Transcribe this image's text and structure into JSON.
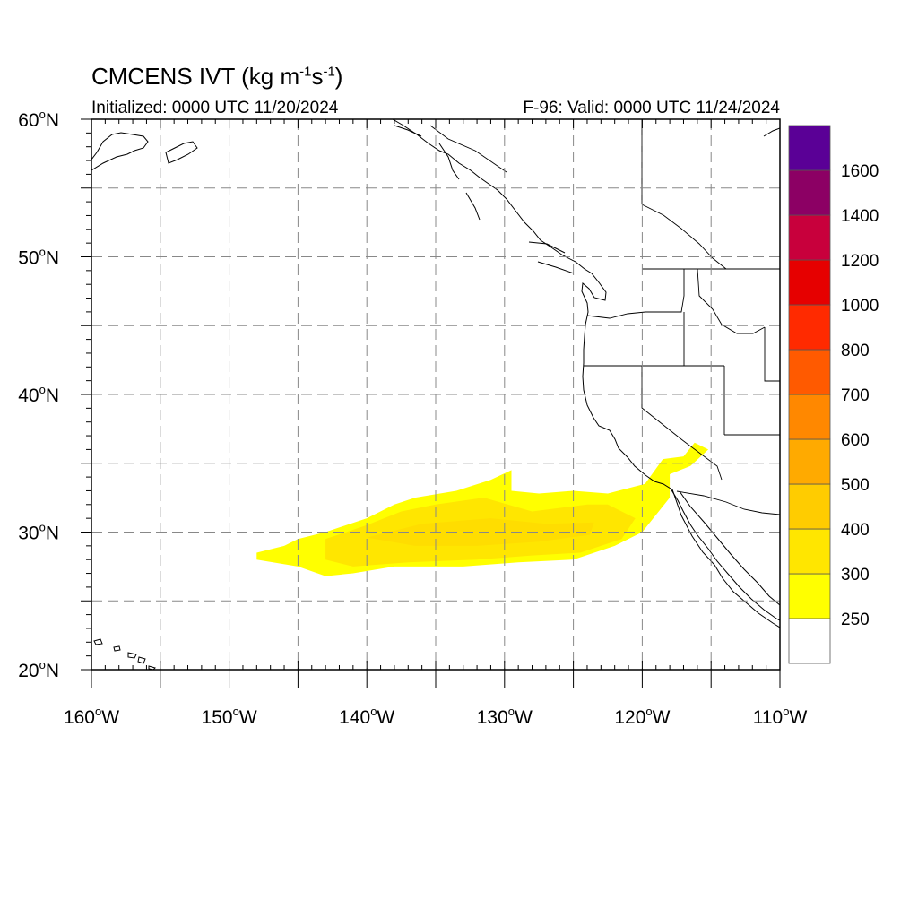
{
  "header": {
    "title_main": "CMCENS IVT (kg m",
    "title_sup1": "-1",
    "title_mid": "s",
    "title_sup2": "-1",
    "title_end": ")",
    "initialized": "Initialized: 0000 UTC 11/20/2024",
    "valid": "F-96: Valid: 0000 UTC 11/24/2024"
  },
  "map": {
    "lon_range": [
      -160,
      -110
    ],
    "lat_range": [
      20,
      60
    ],
    "lon_labels": [
      {
        "lon": -160,
        "text": "160",
        "hemi": "W"
      },
      {
        "lon": -150,
        "text": "150",
        "hemi": "W"
      },
      {
        "lon": -140,
        "text": "140",
        "hemi": "W"
      },
      {
        "lon": -130,
        "text": "130",
        "hemi": "W"
      },
      {
        "lon": -120,
        "text": "120",
        "hemi": "W"
      },
      {
        "lon": -110,
        "text": "110",
        "hemi": "W"
      }
    ],
    "lat_labels": [
      {
        "lat": 60,
        "text": "60",
        "hemi": "N"
      },
      {
        "lat": 50,
        "text": "50",
        "hemi": "N"
      },
      {
        "lat": 40,
        "text": "40",
        "hemi": "N"
      },
      {
        "lat": 30,
        "text": "30",
        "hemi": "N"
      },
      {
        "lat": 20,
        "text": "20",
        "hemi": "N"
      }
    ],
    "grid": "dashed every 5 degrees"
  },
  "colorbar": {
    "colors": [
      "#ffffff",
      "#ffff00",
      "#ffe600",
      "#ffcc00",
      "#ffaa00",
      "#ff8800",
      "#ff5a00",
      "#ff2a00",
      "#e60000",
      "#c8003c",
      "#8c0064",
      "#5a0096"
    ],
    "labels": [
      "250",
      "300",
      "400",
      "500",
      "600",
      "700",
      "800",
      "1000",
      "1200",
      "1400",
      "1600"
    ]
  },
  "chart_data": {
    "type": "heatmap",
    "title": "CMCENS IVT (kg m-1 s-1)",
    "xlim": [
      -160,
      -110
    ],
    "ylim": [
      20,
      60
    ],
    "ivt_regions": [
      {
        "level": "250-300",
        "color": "#ffff00",
        "lon_lat": [
          [
            -148.0,
            28.5
          ],
          [
            -146.0,
            29.0
          ],
          [
            -145.0,
            29.5
          ],
          [
            -143.0,
            30.0
          ],
          [
            -140.0,
            31.0
          ],
          [
            -138.0,
            32.0
          ],
          [
            -136.5,
            32.5
          ],
          [
            -133.5,
            33.0
          ],
          [
            -131.0,
            33.8
          ],
          [
            -129.5,
            34.5
          ],
          [
            -129.5,
            33.0
          ],
          [
            -127.5,
            32.8
          ],
          [
            -125.0,
            33.0
          ],
          [
            -122.5,
            32.8
          ],
          [
            -119.8,
            33.5
          ],
          [
            -118.5,
            35.3
          ],
          [
            -117.0,
            35.5
          ],
          [
            -116.2,
            36.5
          ],
          [
            -115.2,
            36.0
          ],
          [
            -116.5,
            34.8
          ],
          [
            -118.0,
            34.2
          ],
          [
            -118.0,
            32.5
          ],
          [
            -120.0,
            30.0
          ],
          [
            -122.0,
            29.0
          ],
          [
            -125.0,
            28.0
          ],
          [
            -129.0,
            27.8
          ],
          [
            -133.0,
            27.5
          ],
          [
            -138.0,
            27.5
          ],
          [
            -141.0,
            27.0
          ],
          [
            -143.0,
            26.8
          ],
          [
            -145.0,
            27.5
          ],
          [
            -148.0,
            28.0
          ]
        ]
      },
      {
        "level": "300-400",
        "color": "#ffe600",
        "lon_lat": [
          [
            -143.0,
            29.5
          ],
          [
            -140.0,
            30.5
          ],
          [
            -137.5,
            31.5
          ],
          [
            -135.0,
            32.0
          ],
          [
            -131.5,
            32.5
          ],
          [
            -128.0,
            31.5
          ],
          [
            -124.0,
            32.0
          ],
          [
            -122.5,
            32.0
          ],
          [
            -120.5,
            31.0
          ],
          [
            -121.5,
            29.5
          ],
          [
            -124.5,
            28.5
          ],
          [
            -128.0,
            28.3
          ],
          [
            -132.0,
            28.0
          ],
          [
            -137.0,
            27.8
          ],
          [
            -141.0,
            27.5
          ],
          [
            -143.0,
            28.0
          ]
        ]
      },
      {
        "level": "400-500",
        "color": "#ffdd00",
        "lon_lat": [
          [
            -140.0,
            29.6
          ],
          [
            -136.0,
            30.6
          ],
          [
            -131.0,
            31.0
          ],
          [
            -127.0,
            30.6
          ],
          [
            -123.5,
            30.7
          ],
          [
            -123.8,
            29.8
          ],
          [
            -127.5,
            29.3
          ],
          [
            -132.0,
            29.0
          ],
          [
            -136.5,
            29.0
          ]
        ]
      }
    ]
  }
}
